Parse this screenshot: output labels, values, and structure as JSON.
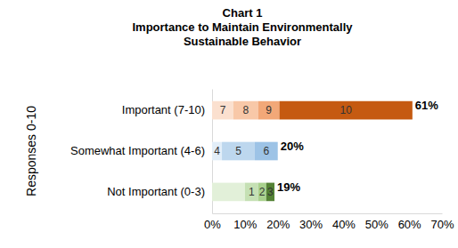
{
  "chart_data": {
    "type": "bar",
    "orientation": "horizontal",
    "stacked": true,
    "title": "Chart 1",
    "subtitle": "Importance to Maintain Environmentally Sustainable Behavior",
    "y_label": "Responses 0-10",
    "categories": [
      "Important (7-10)",
      "Somewhat Important (4-6)",
      "Not Important (0-3)"
    ],
    "series": [
      {
        "name": "7",
        "color": "#fbe0cf",
        "values": [
          6.5,
          null,
          null
        ]
      },
      {
        "name": "8",
        "color": "#f8c8a8",
        "values": [
          7.5,
          null,
          null
        ]
      },
      {
        "name": "9",
        "color": "#f2a878",
        "values": [
          6.5,
          null,
          null
        ]
      },
      {
        "name": "10",
        "color": "#c55a11",
        "values": [
          40.5,
          null,
          null
        ]
      },
      {
        "name": "4",
        "color": "#e2eef9",
        "values": [
          null,
          3,
          null
        ]
      },
      {
        "name": "5",
        "color": "#bdd7ee",
        "values": [
          null,
          10,
          null
        ]
      },
      {
        "name": "6",
        "color": "#9dc3e6",
        "values": [
          null,
          7,
          null
        ]
      },
      {
        "color": "#e2f0d9",
        "values": [
          null,
          null,
          10
        ]
      },
      {
        "name": "1",
        "color": "#c5e0b4",
        "values": [
          null,
          null,
          4
        ]
      },
      {
        "name": "2",
        "color": "#a9d18e",
        "values": [
          null,
          null,
          2.5
        ]
      },
      {
        "name": "3",
        "color": "#548235",
        "values": [
          null,
          null,
          2.5
        ]
      }
    ],
    "totals": [
      61,
      20,
      19
    ],
    "total_labels": [
      "61%",
      "20%",
      "19%"
    ],
    "xlim": [
      0,
      70
    ],
    "xticks": [
      {
        "value": 0,
        "label": "0%"
      },
      {
        "value": 10,
        "label": "10%"
      },
      {
        "value": 20,
        "label": "20%"
      },
      {
        "value": 30,
        "label": "30%"
      },
      {
        "value": 40,
        "label": "40%"
      },
      {
        "value": 50,
        "label": "50%"
      },
      {
        "value": 60,
        "label": "60%"
      },
      {
        "value": 70,
        "label": "70%"
      }
    ],
    "grid": false,
    "data_labels": false
  }
}
